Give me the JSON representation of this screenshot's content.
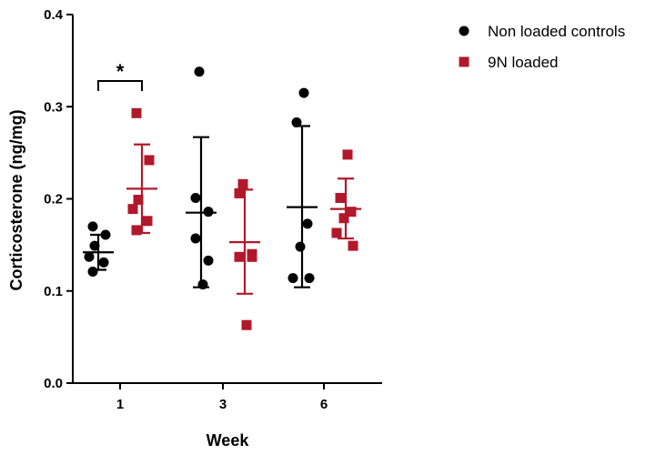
{
  "chart_data": {
    "type": "scatter",
    "xlabel": "Week",
    "ylabel": "Corticosterone (ng/mg)",
    "categories": [
      "1",
      "3",
      "6"
    ],
    "ylim": [
      0.0,
      0.4
    ],
    "yticks": [
      "0.0",
      "0.1",
      "0.2",
      "0.3",
      "0.4"
    ],
    "grid": false,
    "legend_position": "top-right",
    "series": [
      {
        "name": "Non loaded controls",
        "marker": "circle",
        "color": "#000000",
        "groups": [
          {
            "category": "1",
            "points": [
              0.17,
              0.161,
              0.149,
              0.137,
              0.131,
              0.121
            ],
            "mean": 0.142,
            "sd_low": 0.123,
            "sd_high": 0.161
          },
          {
            "category": "3",
            "points": [
              0.338,
              0.201,
              0.186,
              0.157,
              0.133,
              0.107
            ],
            "mean": 0.185,
            "sd_low": 0.104,
            "sd_high": 0.267
          },
          {
            "category": "6",
            "points": [
              0.315,
              0.283,
              0.173,
              0.148,
              0.114,
              0.114
            ],
            "mean": 0.191,
            "sd_low": 0.104,
            "sd_high": 0.279
          }
        ]
      },
      {
        "name": "9N loaded",
        "marker": "square",
        "color": "#b2182b",
        "groups": [
          {
            "category": "1",
            "points": [
              0.293,
              0.242,
              0.199,
              0.189,
              0.176,
              0.166
            ],
            "mean": 0.211,
            "sd_low": 0.163,
            "sd_high": 0.259
          },
          {
            "category": "3",
            "points": [
              0.216,
              0.206,
              0.14,
              0.137,
              0.137,
              0.063
            ],
            "mean": 0.153,
            "sd_low": 0.097,
            "sd_high": 0.21
          },
          {
            "category": "6",
            "points": [
              0.248,
              0.201,
              0.186,
              0.179,
              0.163,
              0.149
            ],
            "mean": 0.189,
            "sd_low": 0.157,
            "sd_high": 0.222
          }
        ]
      }
    ],
    "annotations": [
      {
        "text": "*",
        "category": "1",
        "y": 0.316
      }
    ]
  }
}
